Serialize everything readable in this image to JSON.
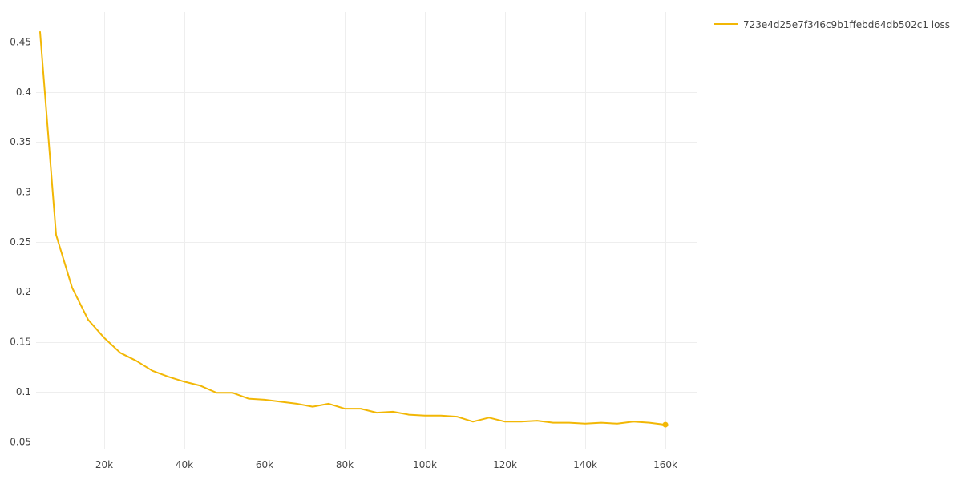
{
  "chart_data": {
    "type": "line",
    "title": "",
    "xlabel": "",
    "ylabel": "",
    "xlim": [
      3000,
      168000
    ],
    "ylim": [
      0.043,
      0.48
    ],
    "grid": true,
    "legend_position": "top-right",
    "x_ticks": [
      {
        "value": 20000,
        "label": "20k"
      },
      {
        "value": 40000,
        "label": "40k"
      },
      {
        "value": 60000,
        "label": "60k"
      },
      {
        "value": 80000,
        "label": "80k"
      },
      {
        "value": 100000,
        "label": "100k"
      },
      {
        "value": 120000,
        "label": "120k"
      },
      {
        "value": 140000,
        "label": "140k"
      },
      {
        "value": 160000,
        "label": "160k"
      }
    ],
    "y_ticks": [
      {
        "value": 0.05,
        "label": "0.05"
      },
      {
        "value": 0.1,
        "label": "0.1"
      },
      {
        "value": 0.15,
        "label": "0.15"
      },
      {
        "value": 0.2,
        "label": "0.2"
      },
      {
        "value": 0.25,
        "label": "0.25"
      },
      {
        "value": 0.3,
        "label": "0.3"
      },
      {
        "value": 0.35,
        "label": "0.35"
      },
      {
        "value": 0.4,
        "label": "0.4"
      },
      {
        "value": 0.45,
        "label": "0.45"
      }
    ],
    "series": [
      {
        "name": "723e4d25e7f346c9b1ffebd64db502c1 loss",
        "color": "#f2b705",
        "x": [
          4000,
          8000,
          12000,
          16000,
          20000,
          24000,
          28000,
          32000,
          36000,
          40000,
          44000,
          48000,
          52000,
          56000,
          60000,
          64000,
          68000,
          72000,
          76000,
          80000,
          84000,
          88000,
          92000,
          96000,
          100000,
          104000,
          108000,
          112000,
          116000,
          120000,
          124000,
          128000,
          132000,
          136000,
          140000,
          144000,
          148000,
          152000,
          156000,
          160000
        ],
        "y": [
          0.46,
          0.257,
          0.204,
          0.172,
          0.154,
          0.139,
          0.131,
          0.121,
          0.115,
          0.11,
          0.106,
          0.099,
          0.099,
          0.093,
          0.092,
          0.09,
          0.088,
          0.085,
          0.088,
          0.083,
          0.083,
          0.079,
          0.08,
          0.077,
          0.076,
          0.076,
          0.075,
          0.07,
          0.074,
          0.07,
          0.07,
          0.071,
          0.069,
          0.069,
          0.068,
          0.069,
          0.068,
          0.07,
          0.069,
          0.067
        ]
      }
    ]
  }
}
